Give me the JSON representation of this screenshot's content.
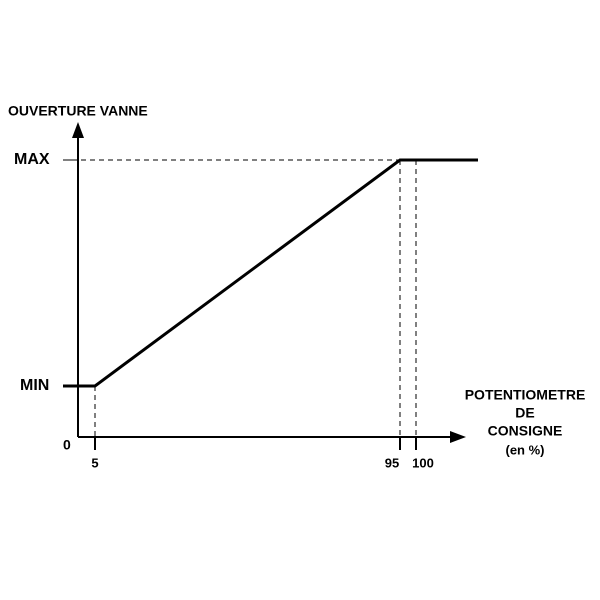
{
  "y_axis_label": "OUVERTURE VANNE",
  "y_labels": {
    "max": "MAX",
    "min": "MIN",
    "origin": "0"
  },
  "x_labels": [
    "5",
    "95",
    "100"
  ],
  "x_axis_label": [
    "POTENTIOMETRE",
    "DE",
    "CONSIGNE",
    "(en %)"
  ]
}
